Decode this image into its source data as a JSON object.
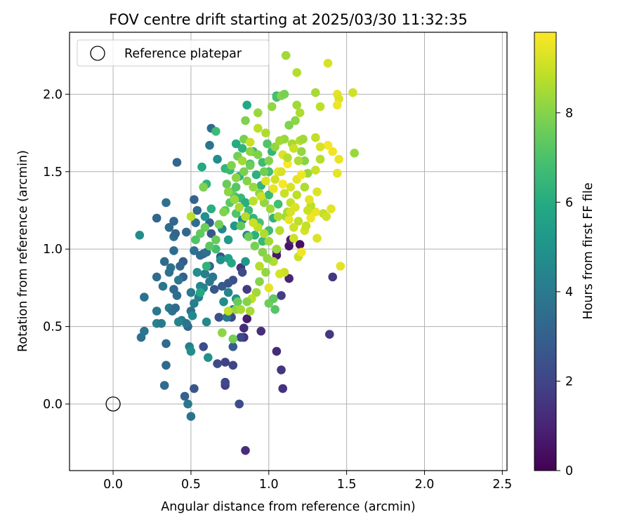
{
  "chart_data": {
    "type": "scatter",
    "title": "FOV centre drift starting at 2025/03/30 11:32:35",
    "xlabel": "Angular distance from reference (arcmin)",
    "ylabel": "Rotation from reference (arcmin)",
    "xlim": [
      -0.28,
      2.53
    ],
    "ylim": [
      -0.43,
      2.4
    ],
    "xticks": [
      0.0,
      0.5,
      1.0,
      1.5,
      2.0,
      2.5
    ],
    "xtick_labels": [
      "0.0",
      "0.5",
      "1.0",
      "1.5",
      "2.0",
      "2.5"
    ],
    "yticks": [
      0.0,
      0.5,
      1.0,
      1.5,
      2.0
    ],
    "ytick_labels": [
      "0.0",
      "0.5",
      "1.0",
      "1.5",
      "2.0"
    ],
    "grid": true,
    "legend": {
      "position": "upper-left",
      "label": "Reference platepar"
    },
    "reference_point": {
      "x": 0.0,
      "y": 0.0
    },
    "colorbar": {
      "label": "Hours from first FF file",
      "range": [
        0,
        9.8
      ],
      "ticks": [
        0,
        2,
        4,
        6,
        8
      ],
      "tick_labels": [
        "0",
        "2",
        "4",
        "6",
        "8"
      ],
      "colormap": "viridis"
    },
    "points_format": "[x, y, hours]",
    "points": [
      [
        1.05,
        0.99,
        0.3
      ],
      [
        1.13,
        1.02,
        0.6
      ],
      [
        1.2,
        1.03,
        0.4
      ],
      [
        1.14,
        1.06,
        0.9
      ],
      [
        0.86,
        0.55,
        0.8
      ],
      [
        1.13,
        0.81,
        1.0
      ],
      [
        1.05,
        0.96,
        0.7
      ],
      [
        0.85,
        -0.3,
        1.3
      ],
      [
        1.09,
        0.1,
        1.4
      ],
      [
        1.08,
        0.22,
        1.5
      ],
      [
        1.05,
        0.34,
        1.2
      ],
      [
        0.95,
        0.47,
        1.3
      ],
      [
        0.84,
        0.49,
        1.2
      ],
      [
        0.84,
        0.43,
        1.4
      ],
      [
        1.08,
        0.7,
        1.8
      ],
      [
        0.82,
        0.88,
        1.5
      ],
      [
        0.86,
        0.74,
        1.7
      ],
      [
        1.39,
        0.45,
        1.6
      ],
      [
        1.41,
        0.82,
        1.6
      ],
      [
        0.81,
        0.0,
        2.3
      ],
      [
        0.72,
        0.12,
        1.8
      ],
      [
        0.72,
        0.14,
        2.1
      ],
      [
        0.77,
        0.25,
        2.0
      ],
      [
        0.72,
        0.27,
        1.9
      ],
      [
        0.67,
        0.26,
        2.2
      ],
      [
        0.58,
        0.37,
        2.3
      ],
      [
        0.76,
        0.56,
        2.1
      ],
      [
        0.68,
        0.56,
        2.4
      ],
      [
        0.82,
        0.43,
        2.1
      ],
      [
        0.77,
        0.37,
        2.8
      ],
      [
        0.83,
        0.85,
        2.2
      ],
      [
        0.77,
        0.8,
        2.4
      ],
      [
        0.69,
        0.95,
        2.5
      ],
      [
        0.63,
        1.1,
        2.6
      ],
      [
        0.65,
        0.74,
        2.7
      ],
      [
        0.7,
        0.76,
        2.8
      ],
      [
        0.74,
        0.78,
        2.6
      ],
      [
        0.58,
        0.97,
        2.9
      ],
      [
        0.62,
        0.89,
        3.1
      ],
      [
        0.45,
        0.92,
        2.8
      ],
      [
        0.45,
        0.82,
        3.0
      ],
      [
        0.43,
        0.89,
        3.2
      ],
      [
        0.48,
        0.5,
        3.3
      ],
      [
        0.52,
        0.1,
        2.6
      ],
      [
        0.46,
        0.05,
        3.1
      ],
      [
        0.33,
        0.12,
        3.5
      ],
      [
        0.34,
        0.25,
        3.3
      ],
      [
        0.34,
        0.39,
        3.4
      ],
      [
        0.18,
        0.43,
        3.6
      ],
      [
        0.2,
        0.47,
        3.8
      ],
      [
        0.28,
        0.52,
        4.3
      ],
      [
        0.31,
        0.52,
        4.0
      ],
      [
        0.28,
        0.6,
        3.9
      ],
      [
        0.36,
        0.62,
        4.1
      ],
      [
        0.38,
        0.6,
        3.7
      ],
      [
        0.4,
        0.62,
        3.4
      ],
      [
        0.39,
        0.74,
        3.3
      ],
      [
        0.41,
        0.7,
        3.5
      ],
      [
        0.44,
        0.54,
        4.0
      ],
      [
        0.47,
        0.52,
        3.8
      ],
      [
        0.42,
        0.53,
        4.4
      ],
      [
        0.5,
        0.6,
        3.6
      ],
      [
        0.51,
        0.57,
        4.6
      ],
      [
        0.55,
        0.69,
        4.2
      ],
      [
        0.5,
        0.72,
        4.0
      ],
      [
        0.56,
        0.76,
        4.5
      ],
      [
        0.58,
        0.75,
        4.3
      ],
      [
        0.59,
        0.84,
        4.1
      ],
      [
        0.62,
        0.79,
        4.0
      ],
      [
        0.64,
        0.82,
        3.9
      ],
      [
        0.2,
        0.69,
        3.7
      ],
      [
        0.28,
        0.82,
        3.5
      ],
      [
        0.32,
        0.76,
        3.8
      ],
      [
        0.36,
        0.85,
        3.6
      ],
      [
        0.33,
        0.92,
        3.4
      ],
      [
        0.37,
        0.88,
        3.7
      ],
      [
        0.42,
        0.8,
        3.9
      ],
      [
        0.39,
        0.99,
        3.5
      ],
      [
        0.47,
        1.11,
        3.3
      ],
      [
        0.39,
        1.08,
        3.6
      ],
      [
        0.4,
        1.1,
        3.2
      ],
      [
        0.36,
        1.14,
        3.4
      ],
      [
        0.39,
        1.18,
        3.3
      ],
      [
        0.28,
        1.2,
        3.2
      ],
      [
        0.17,
        1.09,
        4.7
      ],
      [
        0.34,
        1.3,
        3.6
      ],
      [
        0.41,
        1.56,
        3.2
      ],
      [
        0.52,
        1.32,
        3.1
      ],
      [
        0.54,
        1.25,
        3.3
      ],
      [
        0.53,
        1.17,
        3.5
      ],
      [
        0.52,
        0.99,
        3.7
      ],
      [
        0.56,
        0.96,
        3.4
      ],
      [
        0.6,
        0.98,
        3.6
      ],
      [
        0.62,
        1.17,
        3.0
      ],
      [
        0.63,
        1.78,
        3.4
      ],
      [
        0.62,
        1.67,
        3.8
      ],
      [
        0.58,
        1.4,
        4.2
      ],
      [
        0.67,
        1.58,
        4.8
      ],
      [
        0.59,
        1.21,
        4.9
      ],
      [
        0.54,
        0.85,
        4.7
      ],
      [
        0.49,
        0.37,
        4.2
      ],
      [
        0.5,
        0.34,
        4.8
      ],
      [
        0.48,
        0.0,
        3.9
      ],
      [
        0.5,
        -0.08,
        3.7
      ],
      [
        0.61,
        0.3,
        4.9
      ],
      [
        0.52,
        0.65,
        4.2
      ],
      [
        0.6,
        0.53,
        4.6
      ],
      [
        0.73,
        0.56,
        4.0
      ],
      [
        0.77,
        0.61,
        4.3
      ],
      [
        0.71,
        0.66,
        4.7
      ],
      [
        0.74,
        0.72,
        4.4
      ],
      [
        0.79,
        0.68,
        5.0
      ],
      [
        0.85,
        0.92,
        5.2
      ],
      [
        0.86,
        1.09,
        4.5
      ],
      [
        0.83,
        1.19,
        4.8
      ],
      [
        0.78,
        1.15,
        5.1
      ],
      [
        0.74,
        1.06,
        5.3
      ],
      [
        0.7,
        1.13,
        4.6
      ],
      [
        0.69,
        0.93,
        4.9
      ],
      [
        0.74,
        0.94,
        5.5
      ],
      [
        0.76,
        0.91,
        5.8
      ],
      [
        0.86,
        1.93,
        5.9
      ],
      [
        0.83,
        1.65,
        6.3
      ],
      [
        0.79,
        1.68,
        6.0
      ],
      [
        0.72,
        1.52,
        6.4
      ],
      [
        0.75,
        1.51,
        6.6
      ],
      [
        0.81,
        1.47,
        6.2
      ],
      [
        0.78,
        1.34,
        6.8
      ],
      [
        0.82,
        1.33,
        6.5
      ],
      [
        0.85,
        1.3,
        6.1
      ],
      [
        0.87,
        1.25,
        6.7
      ],
      [
        0.9,
        1.2,
        6.4
      ],
      [
        0.94,
        1.17,
        6.9
      ],
      [
        0.91,
        1.09,
        6.2
      ],
      [
        0.96,
        1.05,
        6.5
      ],
      [
        1.0,
        1.12,
        6.7
      ],
      [
        1.03,
        1.2,
        6.3
      ],
      [
        1.06,
        1.29,
        6.8
      ],
      [
        1.0,
        1.35,
        6.6
      ],
      [
        0.95,
        1.41,
        6.4
      ],
      [
        0.92,
        1.48,
        6.2
      ],
      [
        0.88,
        1.55,
        6.9
      ],
      [
        0.9,
        1.63,
        6.5
      ],
      [
        0.96,
        1.56,
        6.7
      ],
      [
        1.0,
        1.5,
        6.8
      ],
      [
        1.02,
        1.63,
        6.4
      ],
      [
        1.05,
        1.99,
        6.6
      ],
      [
        1.05,
        1.98,
        6.9
      ],
      [
        0.99,
        1.68,
        7.1
      ],
      [
        0.66,
        1.76,
        6.7
      ],
      [
        0.57,
        1.53,
        5.9
      ],
      [
        0.6,
        1.42,
        6.3
      ],
      [
        0.63,
        1.26,
        6.1
      ],
      [
        0.56,
        0.72,
        5.9
      ],
      [
        0.6,
        0.89,
        6.3
      ],
      [
        0.66,
        1.0,
        6.8
      ],
      [
        0.72,
        1.25,
        7.3
      ],
      [
        0.76,
        1.37,
        7.5
      ],
      [
        0.79,
        1.4,
        7.2
      ],
      [
        0.8,
        1.6,
        7.7
      ],
      [
        0.84,
        1.71,
        7.8
      ],
      [
        0.85,
        1.83,
        7.9
      ],
      [
        0.88,
        1.63,
        8.1
      ],
      [
        0.93,
        1.88,
        8.3
      ],
      [
        1.02,
        1.92,
        8.2
      ],
      [
        1.08,
        1.99,
        8.0
      ],
      [
        1.1,
        2.0,
        7.8
      ],
      [
        1.13,
        1.8,
        7.9
      ],
      [
        1.17,
        1.83,
        8.1
      ],
      [
        1.18,
        1.93,
        8.4
      ],
      [
        1.2,
        1.88,
        8.6
      ],
      [
        1.1,
        1.71,
        8.3
      ],
      [
        1.15,
        1.68,
        8.5
      ],
      [
        1.2,
        1.7,
        8.7
      ],
      [
        1.21,
        1.63,
        8.2
      ],
      [
        1.23,
        1.57,
        8.0
      ],
      [
        1.25,
        1.49,
        8.3
      ],
      [
        1.23,
        1.4,
        8.6
      ],
      [
        1.18,
        1.35,
        8.8
      ],
      [
        1.14,
        1.3,
        8.9
      ],
      [
        1.11,
        1.21,
        8.4
      ],
      [
        1.07,
        1.12,
        8.7
      ],
      [
        1.05,
        1.0,
        8.3
      ],
      [
        1.03,
        0.92,
        8.6
      ],
      [
        0.98,
        0.85,
        8.2
      ],
      [
        0.94,
        0.79,
        8.0
      ],
      [
        0.92,
        0.72,
        8.4
      ],
      [
        0.89,
        0.68,
        8.8
      ],
      [
        0.88,
        0.6,
        8.5
      ],
      [
        0.86,
        0.66,
        8.0
      ],
      [
        0.8,
        0.66,
        7.5
      ],
      [
        0.79,
        0.61,
        8.2
      ],
      [
        0.77,
        0.42,
        7.7
      ],
      [
        0.7,
        0.46,
        8.1
      ],
      [
        0.74,
        0.6,
        8.9
      ],
      [
        0.82,
        0.61,
        8.5
      ],
      [
        1.11,
        2.25,
        8.4
      ],
      [
        1.18,
        2.14,
        8.7
      ],
      [
        1.3,
        2.01,
        8.5
      ],
      [
        1.33,
        1.92,
        8.8
      ],
      [
        1.38,
        2.2,
        9.2
      ],
      [
        1.44,
        2.0,
        9.4
      ],
      [
        1.45,
        1.97,
        9.3
      ],
      [
        1.44,
        1.93,
        9.6
      ],
      [
        1.54,
        2.01,
        9.1
      ],
      [
        1.55,
        1.62,
        8.3
      ],
      [
        1.45,
        1.58,
        9.5
      ],
      [
        1.44,
        1.49,
        9.4
      ],
      [
        1.41,
        1.63,
        9.6
      ],
      [
        1.38,
        1.67,
        9.7
      ],
      [
        1.33,
        1.66,
        9.2
      ],
      [
        1.3,
        1.72,
        8.9
      ],
      [
        1.33,
        1.58,
        8.7
      ],
      [
        1.3,
        1.51,
        9.0
      ],
      [
        1.31,
        1.37,
        9.3
      ],
      [
        1.35,
        1.23,
        8.9
      ],
      [
        1.37,
        1.21,
        9.1
      ],
      [
        1.4,
        1.26,
        9.4
      ],
      [
        1.3,
        1.24,
        9.5
      ],
      [
        1.27,
        1.2,
        9.6
      ],
      [
        1.23,
        1.12,
        9.2
      ],
      [
        1.19,
        1.18,
        8.8
      ],
      [
        1.16,
        1.07,
        9.1
      ],
      [
        1.19,
        0.95,
        9.0
      ],
      [
        1.31,
        1.07,
        9.3
      ],
      [
        1.46,
        0.89,
        9.4
      ],
      [
        1.21,
        0.98,
        9.6
      ],
      [
        1.1,
        0.85,
        9.0
      ],
      [
        1.07,
        0.84,
        9.2
      ],
      [
        1.0,
        0.75,
        9.4
      ],
      [
        1.09,
        1.42,
        9.7
      ],
      [
        1.06,
        1.5,
        9.5
      ],
      [
        1.12,
        1.55,
        9.8
      ],
      [
        1.09,
        1.61,
        9.3
      ],
      [
        1.04,
        1.45,
        9.1
      ],
      [
        1.1,
        1.36,
        9.0
      ],
      [
        1.14,
        1.4,
        9.2
      ],
      [
        1.18,
        1.45,
        9.4
      ],
      [
        1.21,
        1.48,
        9.6
      ],
      [
        1.17,
        1.27,
        9.3
      ],
      [
        1.13,
        1.19,
        9.5
      ],
      [
        1.16,
        1.14,
        9.1
      ],
      [
        1.24,
        1.15,
        8.9
      ],
      [
        1.27,
        1.28,
        8.8
      ],
      [
        1.12,
        1.24,
        8.5
      ],
      [
        1.06,
        1.21,
        8.6
      ],
      [
        1.01,
        1.26,
        8.4
      ],
      [
        0.97,
        1.3,
        8.2
      ],
      [
        0.94,
        1.36,
        8.1
      ],
      [
        0.9,
        1.4,
        8.3
      ],
      [
        0.86,
        1.44,
        8.0
      ],
      [
        0.84,
        1.5,
        7.8
      ],
      [
        0.88,
        1.54,
        7.6
      ],
      [
        0.93,
        1.61,
        7.9
      ],
      [
        0.97,
        1.5,
        7.7
      ],
      [
        1.0,
        1.57,
        8.0
      ],
      [
        1.04,
        1.66,
        8.2
      ],
      [
        1.07,
        1.7,
        8.4
      ],
      [
        0.98,
        1.75,
        8.6
      ],
      [
        0.93,
        1.78,
        8.8
      ],
      [
        0.88,
        1.69,
        9.0
      ],
      [
        0.83,
        1.57,
        8.4
      ],
      [
        0.79,
        1.46,
        8.1
      ],
      [
        0.76,
        1.54,
        7.9
      ],
      [
        0.73,
        1.42,
        7.5
      ],
      [
        0.75,
        1.3,
        7.3
      ],
      [
        0.79,
        1.23,
        7.1
      ],
      [
        0.82,
        1.15,
        7.4
      ],
      [
        0.87,
        1.08,
        7.6
      ],
      [
        0.91,
        1.02,
        7.8
      ],
      [
        0.96,
        0.98,
        8.0
      ],
      [
        0.99,
        0.94,
        8.2
      ],
      [
        1.0,
        1.05,
        8.4
      ],
      [
        0.97,
        1.1,
        8.6
      ],
      [
        0.93,
        1.14,
        8.8
      ],
      [
        0.9,
        1.17,
        9.0
      ],
      [
        0.85,
        1.21,
        8.7
      ],
      [
        0.81,
        1.27,
        8.5
      ],
      [
        0.78,
        1.32,
        8.3
      ],
      [
        0.74,
        1.37,
        8.1
      ],
      [
        0.71,
        1.24,
        7.9
      ],
      [
        0.68,
        1.16,
        7.7
      ],
      [
        0.66,
        1.06,
        7.5
      ],
      [
        0.62,
        1.02,
        7.3
      ],
      [
        0.59,
        1.14,
        7.6
      ],
      [
        0.56,
        1.1,
        7.4
      ],
      [
        0.53,
        1.06,
        7.1
      ],
      [
        0.5,
        1.21,
        8.8
      ],
      [
        0.58,
        1.4,
        7.9
      ],
      [
        0.94,
        0.89,
        8.7
      ],
      [
        1.0,
        0.65,
        7.6
      ],
      [
        1.04,
        0.61,
        7.2
      ],
      [
        1.03,
        0.68,
        7.4
      ],
      [
        1.14,
        1.24,
        9.2
      ],
      [
        1.25,
        1.25,
        9.0
      ],
      [
        1.26,
        1.32,
        9.4
      ],
      [
        1.19,
        1.57,
        8.6
      ],
      [
        1.22,
        1.71,
        8.4
      ],
      [
        1.16,
        1.65,
        9.0
      ],
      [
        1.12,
        1.59,
        8.7
      ],
      [
        1.08,
        1.5,
        9.2
      ],
      [
        1.03,
        1.39,
        9.5
      ],
      [
        0.98,
        1.44,
        9.3
      ],
      [
        0.95,
        1.34,
        9.0
      ],
      [
        0.9,
        1.31,
        8.8
      ]
    ]
  }
}
